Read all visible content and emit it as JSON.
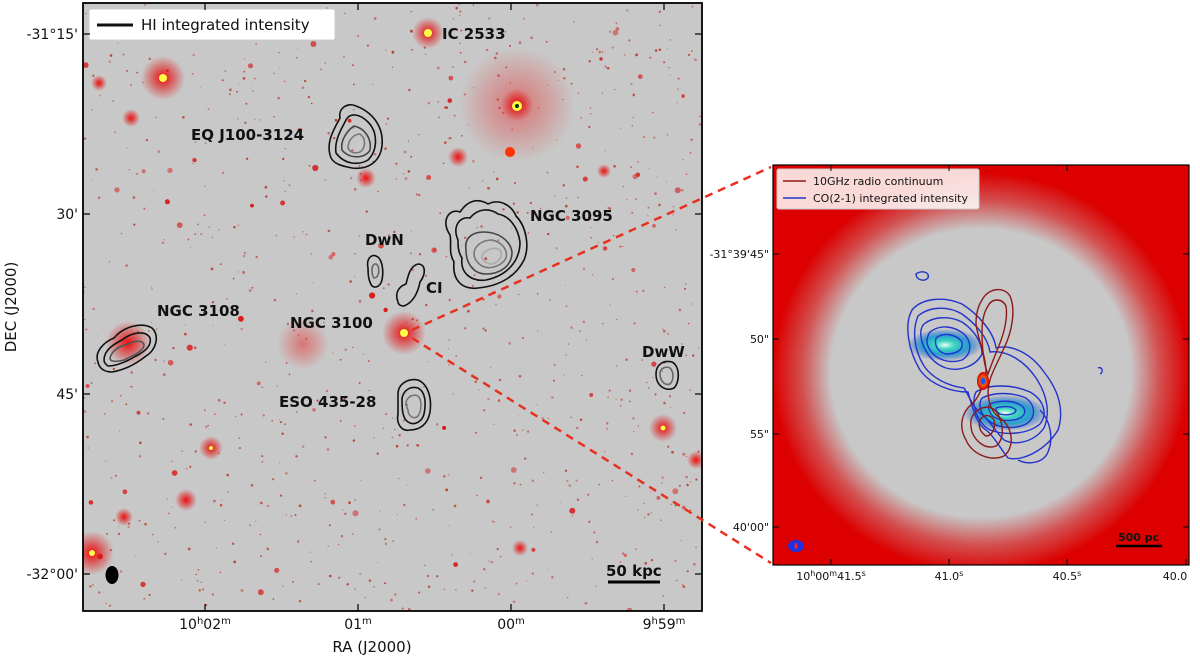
{
  "left_panel": {
    "legend": "HI integrated intensity",
    "xlabel": "RA (J2000)",
    "ylabel": "DEC (J2000)",
    "yticks": [
      "-31°15'",
      "30'",
      "45'",
      "-32°00'"
    ],
    "xticks": [
      {
        "main": "10",
        "sup1": "h",
        "mid": "02",
        "sup2": "m"
      },
      {
        "main": "01",
        "sup1": "",
        "mid": "",
        "sup2": "m"
      },
      {
        "main": "00",
        "sup1": "",
        "mid": "",
        "sup2": "m"
      },
      {
        "main": "9",
        "sup1": "h",
        "mid": "59",
        "sup2": "m"
      }
    ],
    "scalebar": "50 kpc",
    "galaxies": [
      "IC 2533",
      "EQ J100-3124",
      "NGC 3095",
      "DwN",
      "CI",
      "NGC 3108",
      "NGC 3100",
      "DwW",
      "ESO 435-28"
    ]
  },
  "right_panel": {
    "legend": [
      "10GHz radio continuum",
      "CO(2-1) integrated intensity"
    ],
    "yticks": [
      "-31°39'45\"",
      "50\"",
      "55\"",
      "40'00\""
    ],
    "xticks": [
      {
        "main": "10",
        "sup1": "h",
        "mid": "00",
        "sup2": "m",
        "end": "41.5",
        "sup3": "s"
      },
      {
        "main": "41.0",
        "sup1": "s",
        "mid": "",
        "sup2": "",
        "end": "",
        "sup3": ""
      },
      {
        "main": "40.5",
        "sup1": "s",
        "mid": "",
        "sup2": "",
        "end": "",
        "sup3": ""
      },
      {
        "main": "40.0",
        "sup1": "",
        "mid": "",
        "sup2": "",
        "end": "",
        "sup3": ""
      }
    ],
    "scalebar": "500 pc"
  },
  "colors": {
    "sky": "#c8c8c8",
    "halo_red": "#e00000",
    "hi_contour": "#111111",
    "radio_contour": "#8b1a1a",
    "co_contour": "#2233cc",
    "zoom_line": "#e83020"
  }
}
